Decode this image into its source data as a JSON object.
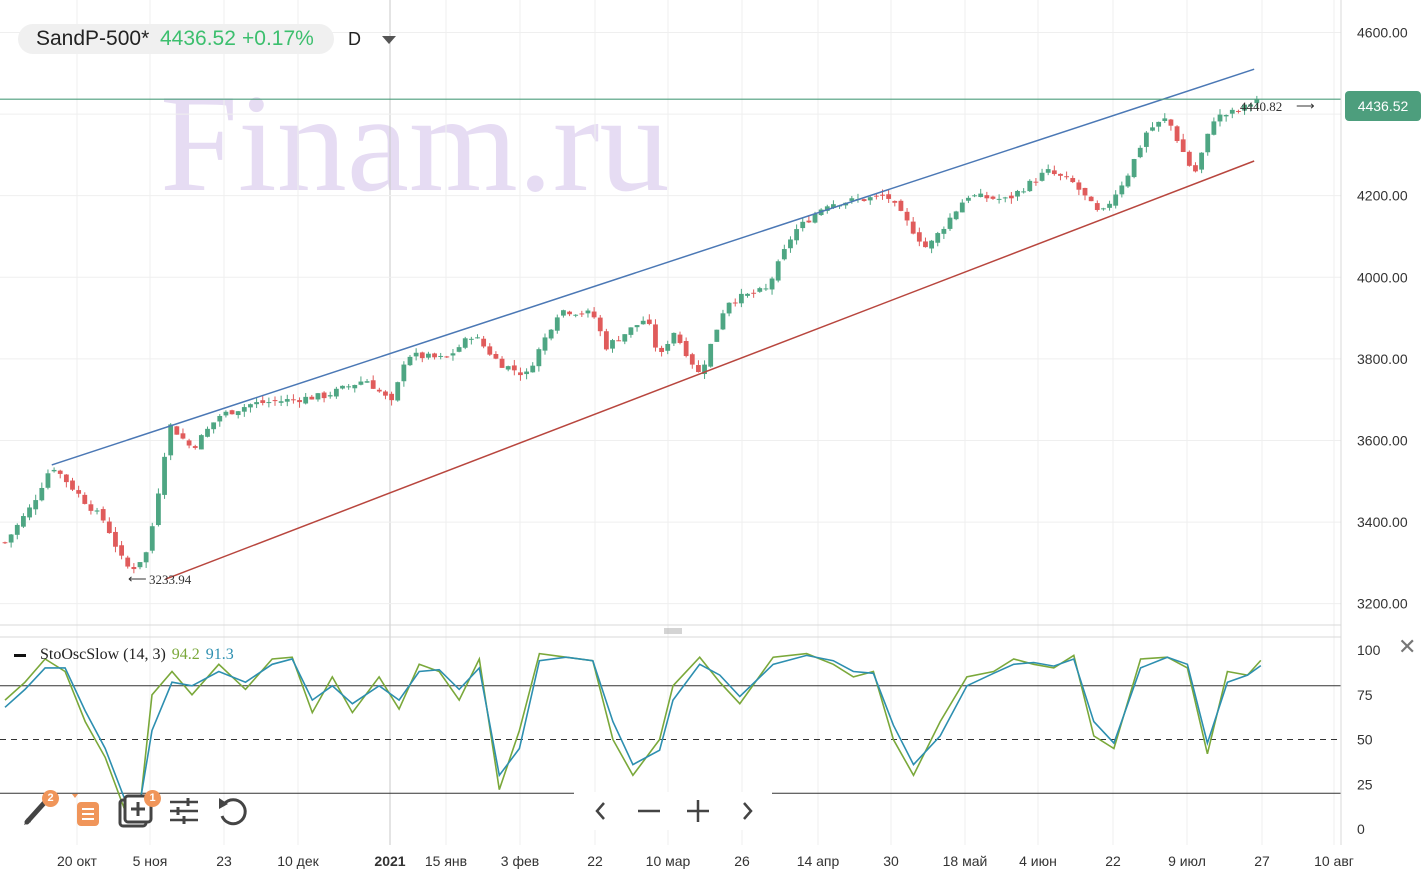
{
  "header": {
    "symbol": "SandP-500*",
    "price": "4436.52",
    "change": "+0.17%",
    "interval": "D"
  },
  "watermark": "Finam.ru",
  "last_price_tag": "4436.52",
  "colors": {
    "up": "#4ea683",
    "down": "#e05b5b",
    "upper_trend": "#4b78b5",
    "lower_trend": "#b8463e",
    "last_price_line": "#4d9e7d",
    "stoch_k": "#7aa83a",
    "stoch_d": "#2d8fb0",
    "watermark": "#e6dcf3"
  },
  "annotations": {
    "high_label": "4440.82",
    "low_label": "3233.94"
  },
  "oscillator": {
    "name": "StoOscSlow (14, 3)",
    "k_value": "94.2",
    "d_value": "91.3",
    "levels": [
      "100",
      "75",
      "50",
      "25",
      "0"
    ]
  },
  "toolbar": {
    "badge_draw": "2",
    "badge_add": "1"
  },
  "chart_data": {
    "type": "candlestick",
    "symbol": "SandP-500*",
    "interval": "D",
    "y_ticks": [
      "4600.00",
      "4400.00",
      "4200.00",
      "4000.00",
      "3800.00",
      "3600.00",
      "3400.00",
      "3200.00"
    ],
    "ylim": [
      3160,
      4660
    ],
    "x_ticks": [
      "20 окт",
      "5 ноя",
      "23",
      "10 дек",
      "2021",
      "15 янв",
      "3 фев",
      "22",
      "10 мар",
      "26",
      "14 апр",
      "30",
      "18 май",
      "4 июн",
      "22",
      "9 июл",
      "27",
      "10 авг"
    ],
    "last_price": 4436.52,
    "upper_trend": [
      [
        0.035,
        3540
      ],
      [
        0.935,
        4510
      ]
    ],
    "lower_trend": [
      [
        0.12,
        3260
      ],
      [
        0.935,
        4285
      ]
    ],
    "period_high": 4440.82,
    "period_low": 3233.94,
    "anchor_points": [
      [
        0,
        3350
      ],
      [
        0.02,
        3440
      ],
      [
        0.035,
        3540
      ],
      [
        0.06,
        3450
      ],
      [
        0.075,
        3400
      ],
      [
        0.09,
        3290
      ],
      [
        0.097,
        3290
      ],
      [
        0.107,
        3330
      ],
      [
        0.115,
        3480
      ],
      [
        0.123,
        3640
      ],
      [
        0.14,
        3580
      ],
      [
        0.16,
        3660
      ],
      [
        0.185,
        3690
      ],
      [
        0.215,
        3700
      ],
      [
        0.24,
        3710
      ],
      [
        0.27,
        3750
      ],
      [
        0.29,
        3690
      ],
      [
        0.3,
        3810
      ],
      [
        0.33,
        3800
      ],
      [
        0.35,
        3860
      ],
      [
        0.37,
        3790
      ],
      [
        0.39,
        3760
      ],
      [
        0.415,
        3920
      ],
      [
        0.44,
        3910
      ],
      [
        0.45,
        3830
      ],
      [
        0.48,
        3900
      ],
      [
        0.49,
        3800
      ],
      [
        0.5,
        3870
      ],
      [
        0.52,
        3760
      ],
      [
        0.54,
        3940
      ],
      [
        0.57,
        3970
      ],
      [
        0.59,
        4110
      ],
      [
        0.615,
        4180
      ],
      [
        0.64,
        4190
      ],
      [
        0.66,
        4200
      ],
      [
        0.69,
        4070
      ],
      [
        0.72,
        4200
      ],
      [
        0.75,
        4190
      ],
      [
        0.78,
        4260
      ],
      [
        0.8,
        4230
      ],
      [
        0.82,
        4150
      ],
      [
        0.84,
        4250
      ],
      [
        0.855,
        4360
      ],
      [
        0.87,
        4390
      ],
      [
        0.89,
        4250
      ],
      [
        0.905,
        4390
      ],
      [
        0.925,
        4410
      ],
      [
        0.937,
        4436.52
      ]
    ],
    "stoch_k_points": [
      [
        0,
        72
      ],
      [
        0.015,
        82
      ],
      [
        0.03,
        95
      ],
      [
        0.045,
        88
      ],
      [
        0.06,
        60
      ],
      [
        0.075,
        40
      ],
      [
        0.09,
        10
      ],
      [
        0.1,
        5
      ],
      [
        0.11,
        75
      ],
      [
        0.125,
        88
      ],
      [
        0.14,
        75
      ],
      [
        0.16,
        92
      ],
      [
        0.18,
        78
      ],
      [
        0.2,
        95
      ],
      [
        0.215,
        96
      ],
      [
        0.23,
        65
      ],
      [
        0.245,
        85
      ],
      [
        0.26,
        65
      ],
      [
        0.28,
        85
      ],
      [
        0.295,
        67
      ],
      [
        0.31,
        92
      ],
      [
        0.325,
        88
      ],
      [
        0.34,
        72
      ],
      [
        0.355,
        95
      ],
      [
        0.37,
        22
      ],
      [
        0.385,
        55
      ],
      [
        0.4,
        98
      ],
      [
        0.42,
        96
      ],
      [
        0.44,
        94
      ],
      [
        0.455,
        50
      ],
      [
        0.47,
        30
      ],
      [
        0.49,
        50
      ],
      [
        0.5,
        80
      ],
      [
        0.52,
        96
      ],
      [
        0.535,
        82
      ],
      [
        0.55,
        70
      ],
      [
        0.575,
        96
      ],
      [
        0.6,
        98
      ],
      [
        0.62,
        92
      ],
      [
        0.635,
        85
      ],
      [
        0.65,
        88
      ],
      [
        0.665,
        50
      ],
      [
        0.68,
        30
      ],
      [
        0.7,
        60
      ],
      [
        0.72,
        85
      ],
      [
        0.74,
        88
      ],
      [
        0.755,
        95
      ],
      [
        0.77,
        92
      ],
      [
        0.785,
        90
      ],
      [
        0.8,
        97
      ],
      [
        0.815,
        52
      ],
      [
        0.83,
        45
      ],
      [
        0.85,
        95
      ],
      [
        0.87,
        96
      ],
      [
        0.885,
        90
      ],
      [
        0.9,
        42
      ],
      [
        0.915,
        88
      ],
      [
        0.93,
        86
      ],
      [
        0.94,
        94.2
      ]
    ],
    "stoch_d_points": [
      [
        0,
        68
      ],
      [
        0.015,
        78
      ],
      [
        0.03,
        90
      ],
      [
        0.045,
        90
      ],
      [
        0.06,
        66
      ],
      [
        0.075,
        45
      ],
      [
        0.09,
        16
      ],
      [
        0.1,
        10
      ],
      [
        0.11,
        55
      ],
      [
        0.125,
        82
      ],
      [
        0.14,
        80
      ],
      [
        0.16,
        88
      ],
      [
        0.18,
        82
      ],
      [
        0.2,
        92
      ],
      [
        0.215,
        95
      ],
      [
        0.23,
        72
      ],
      [
        0.245,
        80
      ],
      [
        0.26,
        70
      ],
      [
        0.28,
        80
      ],
      [
        0.295,
        72
      ],
      [
        0.31,
        88
      ],
      [
        0.325,
        89
      ],
      [
        0.34,
        78
      ],
      [
        0.355,
        90
      ],
      [
        0.37,
        30
      ],
      [
        0.385,
        45
      ],
      [
        0.4,
        94
      ],
      [
        0.42,
        96
      ],
      [
        0.44,
        94
      ],
      [
        0.455,
        60
      ],
      [
        0.47,
        36
      ],
      [
        0.49,
        44
      ],
      [
        0.5,
        72
      ],
      [
        0.52,
        92
      ],
      [
        0.535,
        86
      ],
      [
        0.55,
        74
      ],
      [
        0.575,
        92
      ],
      [
        0.6,
        97
      ],
      [
        0.62,
        94
      ],
      [
        0.635,
        88
      ],
      [
        0.65,
        87
      ],
      [
        0.665,
        58
      ],
      [
        0.68,
        36
      ],
      [
        0.7,
        52
      ],
      [
        0.72,
        80
      ],
      [
        0.74,
        87
      ],
      [
        0.755,
        92
      ],
      [
        0.77,
        93
      ],
      [
        0.785,
        91
      ],
      [
        0.8,
        95
      ],
      [
        0.815,
        60
      ],
      [
        0.83,
        48
      ],
      [
        0.85,
        90
      ],
      [
        0.87,
        96
      ],
      [
        0.885,
        92
      ],
      [
        0.9,
        48
      ],
      [
        0.915,
        82
      ],
      [
        0.93,
        86
      ],
      [
        0.94,
        91.3
      ]
    ],
    "grid": true
  }
}
